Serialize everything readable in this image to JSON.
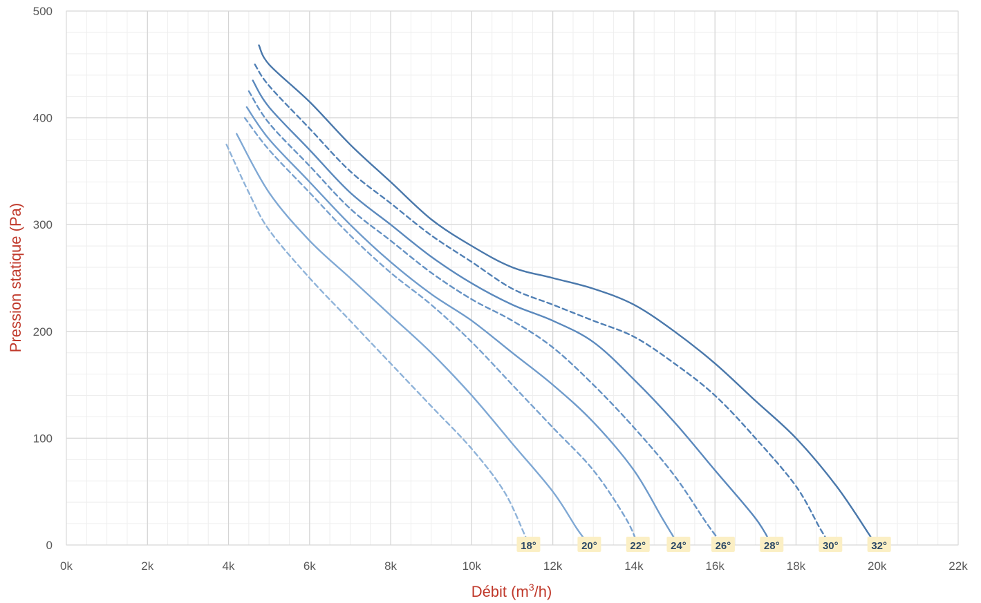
{
  "chart_data": {
    "type": "line",
    "title": "",
    "xlabel": "Débit (m³/h)",
    "xlabel_main": "Débit (m",
    "xlabel_sup": "3",
    "xlabel_tail": "/h)",
    "ylabel": "Pression statique (Pa)",
    "xlim": [
      0,
      22000
    ],
    "ylim": [
      0,
      500
    ],
    "x_ticks": [
      0,
      2000,
      4000,
      6000,
      8000,
      10000,
      12000,
      14000,
      16000,
      18000,
      20000,
      22000
    ],
    "x_tick_labels": [
      "0k",
      "2k",
      "4k",
      "6k",
      "8k",
      "10k",
      "12k",
      "14k",
      "16k",
      "18k",
      "20k",
      "22k"
    ],
    "y_ticks": [
      0,
      100,
      200,
      300,
      400,
      500
    ],
    "y_tick_labels": [
      "0",
      "100",
      "200",
      "300",
      "400",
      "500"
    ],
    "grid": true,
    "minor_grid": true,
    "series": [
      {
        "name": "18°",
        "dashed": true,
        "color": "#8fb3d9",
        "points": [
          [
            3950,
            375
          ],
          [
            4500,
            330
          ],
          [
            5000,
            295
          ],
          [
            6000,
            250
          ],
          [
            7000,
            210
          ],
          [
            8000,
            170
          ],
          [
            9000,
            130
          ],
          [
            10000,
            90
          ],
          [
            10800,
            50
          ],
          [
            11300,
            10
          ],
          [
            11400,
            0
          ]
        ]
      },
      {
        "name": "20°",
        "dashed": false,
        "color": "#7fa8d4",
        "points": [
          [
            4200,
            385
          ],
          [
            5000,
            330
          ],
          [
            6000,
            285
          ],
          [
            7000,
            250
          ],
          [
            8000,
            215
          ],
          [
            9000,
            180
          ],
          [
            10000,
            140
          ],
          [
            11000,
            95
          ],
          [
            12000,
            50
          ],
          [
            12600,
            15
          ],
          [
            12900,
            0
          ]
        ]
      },
      {
        "name": "22°",
        "dashed": true,
        "color": "#7aa3d0",
        "points": [
          [
            4400,
            400
          ],
          [
            5000,
            370
          ],
          [
            6000,
            330
          ],
          [
            7000,
            290
          ],
          [
            8000,
            255
          ],
          [
            9000,
            225
          ],
          [
            10000,
            190
          ],
          [
            11000,
            150
          ],
          [
            12000,
            110
          ],
          [
            13000,
            70
          ],
          [
            13800,
            25
          ],
          [
            14100,
            0
          ]
        ]
      },
      {
        "name": "24°",
        "dashed": false,
        "color": "#6f9bcb",
        "points": [
          [
            4450,
            410
          ],
          [
            5000,
            380
          ],
          [
            6000,
            340
          ],
          [
            7000,
            300
          ],
          [
            8000,
            265
          ],
          [
            9000,
            235
          ],
          [
            10000,
            210
          ],
          [
            11000,
            180
          ],
          [
            12000,
            150
          ],
          [
            13000,
            115
          ],
          [
            14000,
            70
          ],
          [
            14700,
            25
          ],
          [
            15100,
            0
          ]
        ]
      },
      {
        "name": "26°",
        "dashed": true,
        "color": "#6592c4",
        "points": [
          [
            4500,
            425
          ],
          [
            5000,
            395
          ],
          [
            6000,
            355
          ],
          [
            7000,
            315
          ],
          [
            8000,
            285
          ],
          [
            9000,
            255
          ],
          [
            10000,
            230
          ],
          [
            11000,
            210
          ],
          [
            12000,
            185
          ],
          [
            13000,
            150
          ],
          [
            14000,
            110
          ],
          [
            15000,
            65
          ],
          [
            15800,
            20
          ],
          [
            16200,
            0
          ]
        ]
      },
      {
        "name": "28°",
        "dashed": false,
        "color": "#5b89bd",
        "points": [
          [
            4600,
            435
          ],
          [
            5000,
            410
          ],
          [
            6000,
            370
          ],
          [
            7000,
            330
          ],
          [
            8000,
            300
          ],
          [
            9000,
            270
          ],
          [
            10000,
            245
          ],
          [
            11000,
            225
          ],
          [
            12000,
            210
          ],
          [
            13000,
            190
          ],
          [
            14000,
            155
          ],
          [
            15000,
            115
          ],
          [
            16000,
            70
          ],
          [
            17000,
            25
          ],
          [
            17400,
            0
          ]
        ]
      },
      {
        "name": "30°",
        "dashed": true,
        "color": "#5180b5",
        "points": [
          [
            4650,
            450
          ],
          [
            5000,
            430
          ],
          [
            6000,
            390
          ],
          [
            7000,
            350
          ],
          [
            8000,
            320
          ],
          [
            9000,
            290
          ],
          [
            10000,
            265
          ],
          [
            11000,
            240
          ],
          [
            12000,
            225
          ],
          [
            13000,
            210
          ],
          [
            14000,
            195
          ],
          [
            15000,
            170
          ],
          [
            16000,
            140
          ],
          [
            17000,
            100
          ],
          [
            18000,
            55
          ],
          [
            18600,
            15
          ],
          [
            18850,
            0
          ]
        ]
      },
      {
        "name": "32°",
        "dashed": false,
        "color": "#4a78ab",
        "points": [
          [
            4750,
            468
          ],
          [
            5000,
            450
          ],
          [
            6000,
            415
          ],
          [
            7000,
            375
          ],
          [
            8000,
            340
          ],
          [
            9000,
            305
          ],
          [
            10000,
            280
          ],
          [
            11000,
            260
          ],
          [
            12000,
            250
          ],
          [
            13000,
            240
          ],
          [
            14000,
            225
          ],
          [
            15000,
            200
          ],
          [
            16000,
            170
          ],
          [
            17000,
            135
          ],
          [
            18000,
            100
          ],
          [
            19000,
            55
          ],
          [
            19800,
            10
          ],
          [
            19950,
            0
          ]
        ]
      }
    ],
    "curve_labels": [
      {
        "text": "18°",
        "x": 11400
      },
      {
        "text": "20°",
        "x": 12900
      },
      {
        "text": "22°",
        "x": 14100
      },
      {
        "text": "24°",
        "x": 15100
      },
      {
        "text": "26°",
        "x": 16200
      },
      {
        "text": "28°",
        "x": 17400
      },
      {
        "text": "30°",
        "x": 18850
      },
      {
        "text": "32°",
        "x": 20050
      }
    ]
  }
}
